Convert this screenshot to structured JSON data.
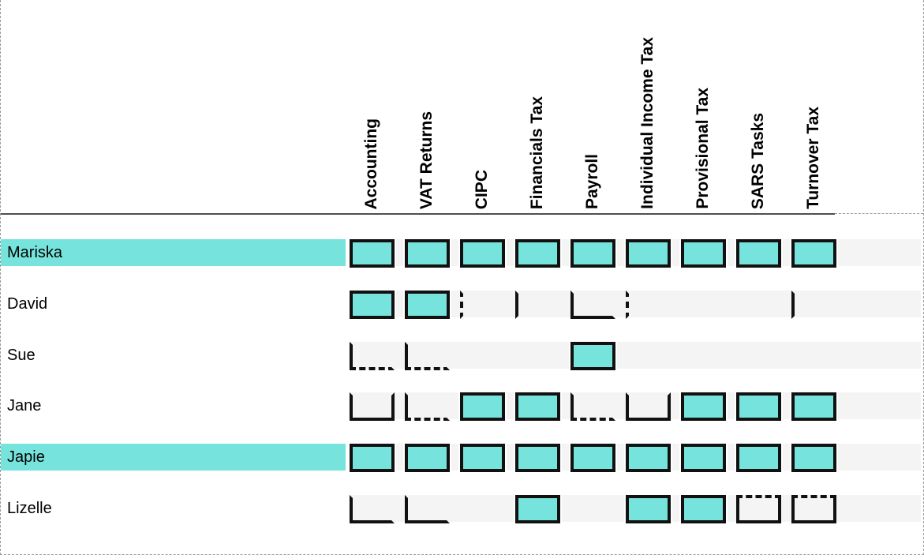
{
  "colors": {
    "filled_cell": "#76e4dc",
    "highlight_row": "#76e4dc",
    "cell_border": "#111111",
    "row_band": "#f4f4f4",
    "header_separator": "#4f4f4f",
    "page_border": "#9a9a9a"
  },
  "matrix": {
    "columns": [
      "Accounting",
      "VAT Returns",
      "CIPC",
      "Financials Tax",
      "Payroll",
      "Individual Income Tax",
      "Provisional Tax",
      "SARS Tasks",
      "Turnover Tax"
    ],
    "cell_state_names": [
      "full",
      "none",
      "left",
      "left-dashed",
      "left-bottom",
      "left-bottomdashed",
      "left-bottom-right",
      "box-topdashed"
    ],
    "rows": [
      {
        "name": "Mariska",
        "highlighted": true,
        "cells": [
          "full",
          "full",
          "full",
          "full",
          "full",
          "full",
          "full",
          "full",
          "full"
        ]
      },
      {
        "name": "David",
        "highlighted": false,
        "cells": [
          "full",
          "full",
          "left-dashed",
          "left",
          "left-bottom",
          "left-dashed",
          "none",
          "none",
          "left"
        ]
      },
      {
        "name": "Sue",
        "highlighted": false,
        "cells": [
          "left-bottomdashed",
          "left-bottomdashed",
          "none",
          "none",
          "full",
          "none",
          "none",
          "none",
          "none"
        ]
      },
      {
        "name": "Jane",
        "highlighted": false,
        "cells": [
          "left-bottom-right",
          "left-bottomdashed",
          "full",
          "full",
          "left-bottomdashed",
          "left-bottom-right",
          "full",
          "full",
          "full"
        ]
      },
      {
        "name": "Japie",
        "highlighted": true,
        "cells": [
          "full",
          "full",
          "full",
          "full",
          "full",
          "full",
          "full",
          "full",
          "full"
        ]
      },
      {
        "name": "Lizelle",
        "highlighted": false,
        "cells": [
          "left-bottom",
          "left-bottom",
          "none",
          "full",
          "none",
          "full",
          "full",
          "box-topdashed",
          "box-topdashed"
        ]
      }
    ]
  }
}
